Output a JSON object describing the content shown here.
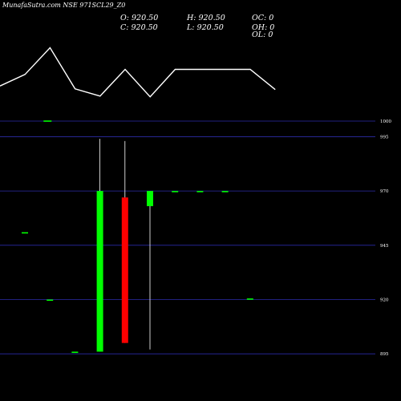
{
  "chart_data": {
    "type": "candlestick",
    "title": "MunafaSutra.com NSE 971SCL29_Z0",
    "ohlc_readout": {
      "open": "O: 920.50",
      "high": "H: 920.50",
      "close": "C: 920.50",
      "low": "L: 920.50",
      "oc": "OC: 0",
      "oh": "OH: 0",
      "ol": "OL: 0"
    },
    "y_ticks": [
      "1000",
      "995",
      "970",
      "945",
      "920",
      "895"
    ],
    "ylim": [
      891,
      997
    ],
    "indicator_line": [
      0.42,
      0.58,
      0.95,
      0.38,
      0.28,
      0.65,
      0.27,
      0.65,
      0.65,
      0.65,
      0.65,
      0.37
    ],
    "indicator_markers": [
      {
        "x_index": 1.9,
        "value": 0.53
      }
    ],
    "candles": [
      {
        "open": 951,
        "high": 951,
        "low": 951,
        "close": 951
      },
      {
        "open": 920,
        "high": 920,
        "low": 920,
        "close": 920
      },
      {
        "open": 896,
        "high": 896,
        "low": 896,
        "close": 896
      },
      {
        "open": 896,
        "high": 994,
        "low": 896,
        "close": 970
      },
      {
        "open": 967,
        "high": 993,
        "low": 900,
        "close": 900
      },
      {
        "open": 963,
        "high": 970,
        "low": 897,
        "close": 970
      },
      {
        "open": 970,
        "high": 970,
        "low": 970,
        "close": 970
      },
      {
        "open": 970,
        "high": 970,
        "low": 970,
        "close": 970
      },
      {
        "open": 970,
        "high": 970,
        "low": 970,
        "close": 970
      },
      {
        "open": 920.5,
        "high": 920.5,
        "low": 920.5,
        "close": 920.5
      }
    ],
    "colors": {
      "background": "#000000",
      "up": "#00ff00",
      "down": "#ff0000",
      "grid": "#2b2ba8",
      "line": "#ffffff",
      "text": "#ffffff"
    }
  }
}
